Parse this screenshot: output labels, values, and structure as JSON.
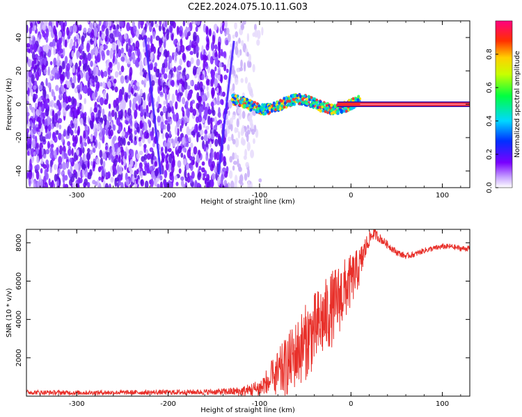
{
  "figure": {
    "title": "C2E2.2024.075.10.11.G03"
  },
  "chart_data": [
    {
      "type": "heatmap",
      "xlabel": "Height of straight line (km)",
      "ylabel": "Frequency (Hz)",
      "xlim": [
        -355,
        130
      ],
      "ylim": [
        -50,
        50
      ],
      "xticks": [
        -300,
        -200,
        -100,
        0,
        100
      ],
      "yticks": [
        -40,
        -20,
        0,
        20,
        40
      ],
      "colorbar": {
        "label": "Normalized spectral amplitude",
        "range": [
          0,
          1
        ],
        "ticks": [
          0.0,
          0.2,
          0.4,
          0.6,
          0.8
        ],
        "tick_labels": [
          "0.0",
          "0.2",
          "0.4",
          "0.6",
          "0.8"
        ]
      },
      "noise_region_x": [
        -355,
        -100
      ],
      "signal_region_x": [
        -130,
        130
      ],
      "signal_frequency": 0,
      "slanted_lines": [
        {
          "x_top": -225,
          "x_bottom": -208,
          "y_top": 40,
          "y_bottom": -42
        },
        {
          "x_top": -128,
          "x_bottom": -145,
          "y_top": 38,
          "y_bottom": -42
        }
      ]
    },
    {
      "type": "line",
      "xlabel": "Height of straight line (km)",
      "ylabel": "SNR (10 * v/v)",
      "xlim": [
        -355,
        130
      ],
      "ylim": [
        0,
        8700
      ],
      "xticks": [
        -300,
        -200,
        -100,
        0,
        100
      ],
      "yticks": [
        2000,
        4000,
        6000,
        8000
      ],
      "color": "#e8302a",
      "series": [
        {
          "x": [
            -355,
            -300,
            -250,
            -200,
            -150,
            -120,
            -100,
            -90,
            -80,
            -70,
            -60,
            -50,
            -40,
            -30,
            -20,
            -10,
            0,
            10,
            15,
            20,
            25,
            30,
            40,
            50,
            60,
            70,
            80,
            90,
            100,
            110,
            120,
            130
          ],
          "values": [
            200,
            180,
            190,
            200,
            220,
            250,
            400,
            700,
            1100,
            1600,
            2200,
            2800,
            3400,
            4000,
            4600,
            5300,
            6000,
            6800,
            7600,
            8200,
            8500,
            8300,
            7900,
            7500,
            7300,
            7400,
            7600,
            7700,
            7800,
            7800,
            7700,
            7700
          ],
          "spread": [
            120,
            120,
            120,
            130,
            150,
            250,
            500,
            900,
            1300,
            1600,
            1800,
            2000,
            2000,
            2000,
            2000,
            1800,
            1400,
            1000,
            700,
            400,
            300,
            250,
            200,
            180,
            150,
            150,
            150,
            150,
            150,
            150,
            150,
            150
          ]
        }
      ]
    }
  ]
}
